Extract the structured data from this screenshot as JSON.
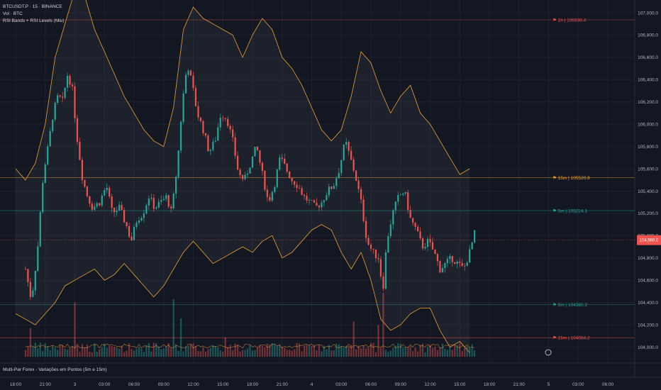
{
  "legend": {
    "symbol_line": "BTCUSDT.P · 15 · BINANCE",
    "volume_line": "Vol · BTC",
    "indicator_line": "RSI Bands + RSI Levels (Miu)"
  },
  "bottom_indicator": "Multi-Par Forex - Variações em Pontos (5m e 15m)",
  "colors": {
    "background": "#131722",
    "up": "#26a69a",
    "down": "#ef5350",
    "band": "#f0a030",
    "grid": "#1e222d",
    "axis_text": "#b2b5be"
  },
  "chart_data": {
    "type": "candlestick",
    "y_axis": {
      "range": [
        103900,
        107150
      ],
      "ticks": [
        "107,000.0",
        "106,800.0",
        "106,600.0",
        "106,400.0",
        "106,200.0",
        "106,000.0",
        "105,800.0",
        "105,600.0",
        "105,400.0",
        "105,200.0",
        "105,000.0",
        "104,800.0",
        "104,600.0",
        "104,400.0",
        "104,200.0",
        "104,000.0"
      ],
      "tick_values": [
        107000,
        106800,
        106600,
        106400,
        106200,
        106000,
        105800,
        105600,
        105400,
        105200,
        105000,
        104800,
        104600,
        104400,
        104200,
        104000
      ]
    },
    "x_axis": {
      "ticks": [
        "18:00",
        "21:00",
        "3",
        "03:00",
        "06:00",
        "09:00",
        "12:00",
        "15:00",
        "18:00",
        "21:00",
        "4",
        "03:00",
        "06:00",
        "09:00",
        "12:00",
        "15:00",
        "18:00",
        "21:00",
        "5",
        "03:00",
        "06:00"
      ],
      "tick_hours": [
        0,
        3,
        6,
        9,
        12,
        15,
        18,
        21,
        24,
        27,
        30,
        33,
        36,
        39,
        42,
        45,
        48,
        51,
        54,
        57,
        60
      ]
    },
    "levels": [
      {
        "label": "1h | 106936.4",
        "value": 106936.4,
        "color": "#ef5350"
      },
      {
        "label": "15m | 105520.8",
        "value": 105520.8,
        "color": "#f0a030"
      },
      {
        "label": "5m | 105224.1",
        "value": 105224.1,
        "color": "#26a69a"
      },
      {
        "label": "5m | 104380.2",
        "value": 104380.2,
        "color": "#26a69a"
      },
      {
        "label": "15m | 104084.2",
        "value": 104084.2,
        "color": "#ef5350"
      }
    ],
    "current_price": {
      "value": 104960,
      "label": "104,960.0"
    },
    "close_path": [
      [
        1.0,
        104700
      ],
      [
        1.6,
        104420
      ],
      [
        2.2,
        104850
      ],
      [
        2.8,
        105550
      ],
      [
        3.3,
        105800
      ],
      [
        3.8,
        106100
      ],
      [
        4.3,
        106250
      ],
      [
        4.8,
        106200
      ],
      [
        5.2,
        106450
      ],
      [
        5.7,
        106350
      ],
      [
        6.2,
        105900
      ],
      [
        6.8,
        105500
      ],
      [
        7.3,
        105350
      ],
      [
        7.8,
        105250
      ],
      [
        8.5,
        105300
      ],
      [
        9.2,
        105450
      ],
      [
        9.8,
        105200
      ],
      [
        10.5,
        105250
      ],
      [
        11.2,
        105100
      ],
      [
        11.7,
        104950
      ],
      [
        12.3,
        105150
      ],
      [
        12.9,
        105200
      ],
      [
        13.5,
        105350
      ],
      [
        14.1,
        105250
      ],
      [
        14.7,
        105300
      ],
      [
        15.3,
        105350
      ],
      [
        15.8,
        105200
      ],
      [
        16.4,
        105650
      ],
      [
        16.9,
        106200
      ],
      [
        17.4,
        106550
      ],
      [
        17.9,
        106350
      ],
      [
        18.4,
        106100
      ],
      [
        19.0,
        105950
      ],
      [
        19.6,
        105750
      ],
      [
        20.2,
        105850
      ],
      [
        20.8,
        106100
      ],
      [
        21.4,
        106050
      ],
      [
        22.0,
        105850
      ],
      [
        22.6,
        105550
      ],
      [
        23.2,
        105500
      ],
      [
        23.8,
        105650
      ],
      [
        24.4,
        105800
      ],
      [
        25.0,
        105550
      ],
      [
        25.6,
        105300
      ],
      [
        26.2,
        105450
      ],
      [
        26.8,
        105700
      ],
      [
        27.4,
        105600
      ],
      [
        28.0,
        105500
      ],
      [
        28.6,
        105450
      ],
      [
        29.2,
        105350
      ],
      [
        29.8,
        105300
      ],
      [
        30.4,
        105250
      ],
      [
        31.0,
        105300
      ],
      [
        31.6,
        105400
      ],
      [
        32.2,
        105450
      ],
      [
        32.8,
        105600
      ],
      [
        33.4,
        105850
      ],
      [
        33.9,
        105700
      ],
      [
        34.4,
        105550
      ],
      [
        35.0,
        105300
      ],
      [
        35.6,
        104950
      ],
      [
        36.2,
        104850
      ],
      [
        36.8,
        104800
      ],
      [
        37.2,
        104500
      ],
      [
        37.6,
        104950
      ],
      [
        38.2,
        105200
      ],
      [
        38.8,
        105350
      ],
      [
        39.4,
        105400
      ],
      [
        40.0,
        105150
      ],
      [
        40.6,
        105050
      ],
      [
        41.2,
        104900
      ],
      [
        41.8,
        104950
      ],
      [
        42.4,
        104850
      ],
      [
        43.0,
        104700
      ],
      [
        43.6,
        104750
      ],
      [
        44.2,
        104800
      ],
      [
        44.8,
        104750
      ],
      [
        45.4,
        104700
      ],
      [
        46.0,
        104850
      ],
      [
        46.6,
        105050
      ]
    ],
    "band_upper": [
      [
        0,
        105600
      ],
      [
        1,
        105500
      ],
      [
        2,
        105650
      ],
      [
        3,
        106000
      ],
      [
        4,
        106600
      ],
      [
        5,
        106900
      ],
      [
        6,
        107200
      ],
      [
        7,
        107150
      ],
      [
        8,
        106850
      ],
      [
        9,
        106650
      ],
      [
        10,
        106450
      ],
      [
        11,
        106250
      ],
      [
        12,
        106100
      ],
      [
        13,
        105950
      ],
      [
        14,
        105850
      ],
      [
        15,
        105800
      ],
      [
        16,
        106150
      ],
      [
        17,
        106850
      ],
      [
        18,
        107050
      ],
      [
        19,
        106950
      ],
      [
        20,
        106900
      ],
      [
        21,
        106850
      ],
      [
        22,
        106800
      ],
      [
        23,
        106600
      ],
      [
        24,
        106800
      ],
      [
        25,
        106950
      ],
      [
        26,
        106850
      ],
      [
        27,
        106600
      ],
      [
        28,
        106500
      ],
      [
        29,
        106350
      ],
      [
        30,
        106150
      ],
      [
        31,
        105950
      ],
      [
        32,
        105850
      ],
      [
        33,
        105950
      ],
      [
        34,
        106250
      ],
      [
        35,
        106650
      ],
      [
        36,
        106550
      ],
      [
        37,
        106300
      ],
      [
        38,
        106100
      ],
      [
        39,
        106250
      ],
      [
        40,
        106350
      ],
      [
        41,
        106100
      ],
      [
        42,
        106000
      ],
      [
        43,
        105850
      ],
      [
        44,
        105700
      ],
      [
        45,
        105550
      ],
      [
        46,
        105600
      ]
    ],
    "band_lower": [
      [
        0,
        104300
      ],
      [
        1,
        104250
      ],
      [
        2,
        104200
      ],
      [
        3,
        104300
      ],
      [
        4,
        104400
      ],
      [
        5,
        104550
      ],
      [
        6,
        104600
      ],
      [
        7,
        104650
      ],
      [
        8,
        104700
      ],
      [
        9,
        104600
      ],
      [
        10,
        104650
      ],
      [
        11,
        104750
      ],
      [
        12,
        104650
      ],
      [
        13,
        104550
      ],
      [
        14,
        104450
      ],
      [
        15,
        104550
      ],
      [
        16,
        104700
      ],
      [
        17,
        104850
      ],
      [
        18,
        104950
      ],
      [
        19,
        104850
      ],
      [
        20,
        104750
      ],
      [
        21,
        104800
      ],
      [
        22,
        104850
      ],
      [
        23,
        104900
      ],
      [
        24,
        104850
      ],
      [
        25,
        104950
      ],
      [
        26,
        105000
      ],
      [
        27,
        104800
      ],
      [
        28,
        104850
      ],
      [
        29,
        104950
      ],
      [
        30,
        105050
      ],
      [
        31,
        105100
      ],
      [
        32,
        105050
      ],
      [
        33,
        104850
      ],
      [
        34,
        104700
      ],
      [
        35,
        104850
      ],
      [
        36,
        104600
      ],
      [
        37,
        104250
      ],
      [
        38,
        104150
      ],
      [
        39,
        104200
      ],
      [
        40,
        104300
      ],
      [
        41,
        104350
      ],
      [
        42,
        104350
      ],
      [
        43,
        104150
      ],
      [
        44,
        104000
      ],
      [
        45,
        104050
      ],
      [
        46,
        103950
      ]
    ],
    "volume_spikes": [
      {
        "hour": 6.0,
        "rel": 0.85
      },
      {
        "hour": 16.1,
        "rel": 0.9
      },
      {
        "hour": 37.2,
        "rel": 1.0
      },
      {
        "hour": 36.7,
        "rel": 0.5
      },
      {
        "hour": 34.3,
        "rel": 0.55
      },
      {
        "hour": 16.8,
        "rel": 0.6
      },
      {
        "hour": 1.5,
        "rel": 0.45
      },
      {
        "hour": 21.2,
        "rel": 0.3
      }
    ]
  }
}
